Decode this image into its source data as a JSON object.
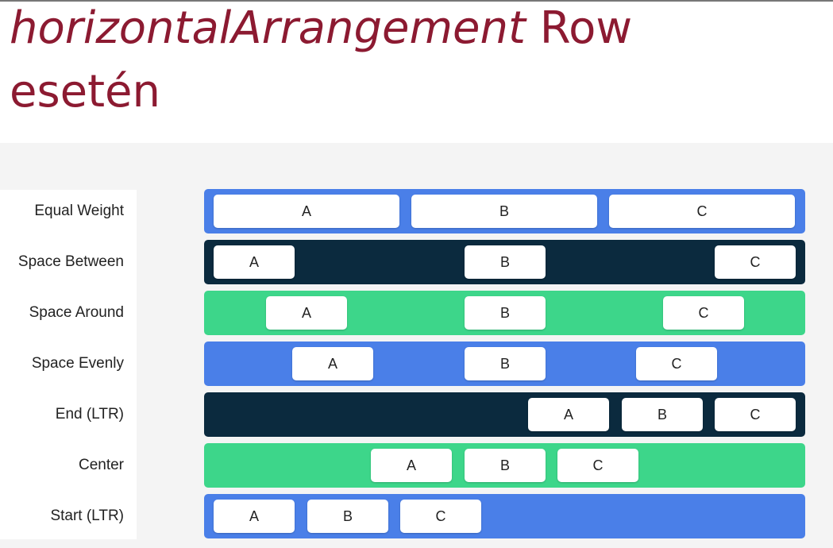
{
  "title": {
    "emphasis": "horizontalArrangement",
    "rest": "Row",
    "second_line": "esetén"
  },
  "rows": [
    {
      "label": "Equal Weight",
      "items": [
        "A",
        "B",
        "C"
      ]
    },
    {
      "label": "Space Between",
      "items": [
        "A",
        "B",
        "C"
      ]
    },
    {
      "label": "Space Around",
      "items": [
        "A",
        "B",
        "C"
      ]
    },
    {
      "label": "Space Evenly",
      "items": [
        "A",
        "B",
        "C"
      ]
    },
    {
      "label": "End (LTR)",
      "items": [
        "A",
        "B",
        "C"
      ]
    },
    {
      "label": "Center",
      "items": [
        "A",
        "B",
        "C"
      ]
    },
    {
      "label": "Start (LTR)",
      "items": [
        "A",
        "B",
        "C"
      ]
    }
  ]
}
